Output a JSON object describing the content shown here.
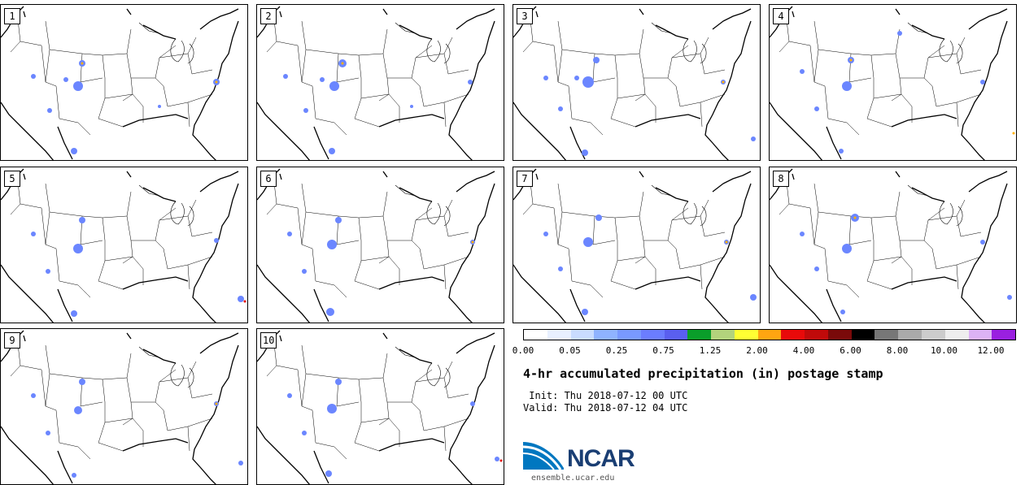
{
  "panels": [
    {
      "label": "1"
    },
    {
      "label": "2"
    },
    {
      "label": "3"
    },
    {
      "label": "4"
    },
    {
      "label": "5"
    },
    {
      "label": "6"
    },
    {
      "label": "7"
    },
    {
      "label": "8"
    },
    {
      "label": "9"
    },
    {
      "label": "10"
    }
  ],
  "colorbar": {
    "colors": [
      "#ffffff",
      "#e8f0ff",
      "#c9dcff",
      "#8fb3ff",
      "#7999ff",
      "#6b7dff",
      "#5a5ff0",
      "#0a9e2a",
      "#b3d37c",
      "#ffff33",
      "#ffa511",
      "#e90a0a",
      "#c10a0a",
      "#7a0a0a",
      "#000000",
      "#777777",
      "#aaaaaa",
      "#cccccc",
      "#eeeeee",
      "#dcb2f5",
      "#9a20e0"
    ],
    "ticks": [
      "0.00",
      "0.05",
      "0.25",
      "0.75",
      "1.25",
      "2.00",
      "4.00",
      "6.00",
      "8.00",
      "10.00",
      "12.00"
    ]
  },
  "title": "4-hr accumulated precipitation (in) postage stamp",
  "init_line": " Init: Thu 2018-07-12 00 UTC",
  "valid_line": "Valid: Thu 2018-07-12 04 UTC",
  "logo": {
    "text": "NCAR",
    "site": "ensemble.ucar.edu",
    "brand_color": "#1a3e73",
    "swoosh_color": "#0077c0"
  }
}
